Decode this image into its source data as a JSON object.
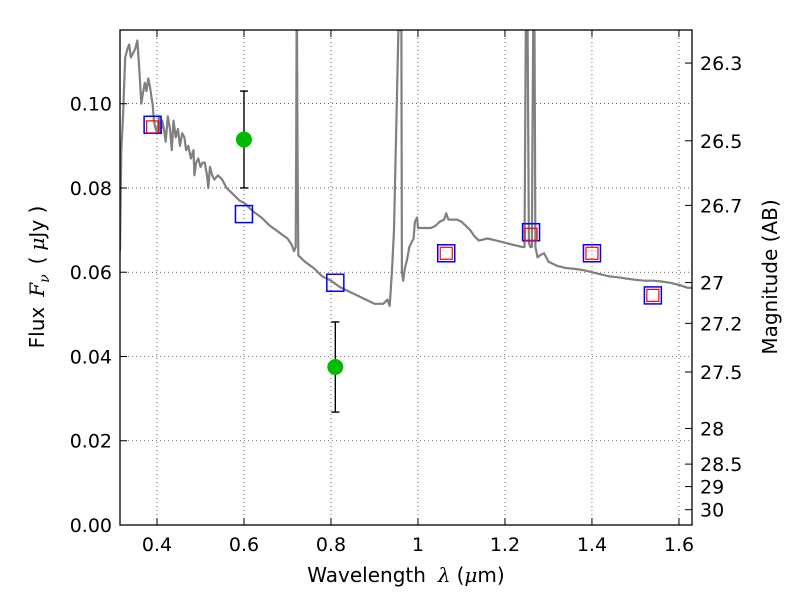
{
  "chart_data": {
    "type": "scatter",
    "xlabel": "Wavelength",
    "xlabel_symbol": "λ",
    "xlabel_unit_prefix": "(",
    "xlabel_unit_mu": "μ",
    "xlabel_unit_suffix": "m)",
    "ylabel": "Flux",
    "ylabel_symbol": "F",
    "ylabel_symbol_sub": "ν",
    "ylabel_unit_open": "(",
    "ylabel_unit_mu": "μ",
    "ylabel_unit_suffix": "Jy )",
    "y2label": "Magnitude (AB)",
    "xlim": [
      0.315,
      1.63
    ],
    "ylim": [
      0.0,
      0.1175
    ],
    "grid": true,
    "x_ticks": [
      0.4,
      0.6,
      0.8,
      1.0,
      1.2,
      1.4,
      1.6
    ],
    "x_tick_labels": [
      "0.4",
      "0.6",
      "0.8",
      "1",
      "1.2",
      "1.4",
      "1.6"
    ],
    "y_ticks": [
      0.0,
      0.02,
      0.04,
      0.06,
      0.08,
      0.1
    ],
    "y_tick_labels": [
      "0.00",
      "0.02",
      "0.04",
      "0.06",
      "0.08",
      "0.10"
    ],
    "mag_ticks": [
      26.3,
      26.5,
      26.7,
      27,
      27.2,
      27.5,
      28,
      28.5,
      29,
      30
    ],
    "mag_tick_labels": [
      "26.3",
      "26.5",
      "26.7",
      "27",
      "27.2",
      "27.5",
      "28",
      "28.5",
      "29",
      "30"
    ],
    "colors": {
      "sed": "#808080",
      "model_flux": "#0000ff",
      "observed_flux": "#ff0000",
      "detections": "#00bb00",
      "errorbar": "#000000"
    },
    "series": [
      {
        "name": "SED template",
        "type": "line",
        "points": [
          [
            0.315,
            0.065
          ],
          [
            0.318,
            0.089
          ],
          [
            0.322,
            0.097
          ],
          [
            0.327,
            0.111
          ],
          [
            0.332,
            0.113
          ],
          [
            0.336,
            0.114
          ],
          [
            0.34,
            0.111
          ],
          [
            0.345,
            0.112
          ],
          [
            0.35,
            0.113
          ],
          [
            0.355,
            0.115
          ],
          [
            0.36,
            0.107
          ],
          [
            0.364,
            0.1
          ],
          [
            0.367,
            0.102
          ],
          [
            0.372,
            0.105
          ],
          [
            0.376,
            0.103
          ],
          [
            0.38,
            0.106
          ],
          [
            0.384,
            0.104
          ],
          [
            0.388,
            0.101
          ],
          [
            0.39,
            0.1
          ],
          [
            0.393,
            0.096
          ],
          [
            0.397,
            0.094
          ],
          [
            0.401,
            0.093
          ],
          [
            0.405,
            0.097
          ],
          [
            0.408,
            0.093
          ],
          [
            0.412,
            0.096
          ],
          [
            0.416,
            0.094
          ],
          [
            0.42,
            0.091
          ],
          [
            0.425,
            0.097
          ],
          [
            0.43,
            0.094
          ],
          [
            0.434,
            0.089
          ],
          [
            0.438,
            0.096
          ],
          [
            0.443,
            0.092
          ],
          [
            0.448,
            0.094
          ],
          [
            0.453,
            0.09
          ],
          [
            0.458,
            0.093
          ],
          [
            0.463,
            0.092
          ],
          [
            0.467,
            0.089
          ],
          [
            0.472,
            0.09
          ],
          [
            0.478,
            0.087
          ],
          [
            0.484,
            0.089
          ],
          [
            0.486,
            0.083
          ],
          [
            0.49,
            0.086
          ],
          [
            0.495,
            0.087
          ],
          [
            0.5,
            0.085
          ],
          [
            0.505,
            0.086
          ],
          [
            0.51,
            0.086
          ],
          [
            0.515,
            0.083
          ],
          [
            0.518,
            0.08
          ],
          [
            0.522,
            0.085
          ],
          [
            0.527,
            0.083
          ],
          [
            0.532,
            0.082
          ],
          [
            0.54,
            0.083
          ],
          [
            0.55,
            0.082
          ],
          [
            0.56,
            0.08
          ],
          [
            0.57,
            0.079
          ],
          [
            0.58,
            0.078
          ],
          [
            0.59,
            0.077
          ],
          [
            0.6,
            0.0765
          ],
          [
            0.62,
            0.0745
          ],
          [
            0.64,
            0.073
          ],
          [
            0.66,
            0.071
          ],
          [
            0.68,
            0.0695
          ],
          [
            0.7,
            0.068
          ],
          [
            0.71,
            0.0665
          ],
          [
            0.715,
            0.065
          ],
          [
            0.719,
            0.066
          ],
          [
            0.72,
            0.09
          ],
          [
            0.721,
            0.1175
          ],
          [
            0.722,
            0.1175
          ],
          [
            0.723,
            0.09
          ],
          [
            0.725,
            0.064
          ],
          [
            0.74,
            0.0625
          ],
          [
            0.76,
            0.061
          ],
          [
            0.78,
            0.059
          ],
          [
            0.8,
            0.058
          ],
          [
            0.82,
            0.0565
          ],
          [
            0.84,
            0.0555
          ],
          [
            0.86,
            0.0545
          ],
          [
            0.88,
            0.0535
          ],
          [
            0.9,
            0.0525
          ],
          [
            0.92,
            0.0525
          ],
          [
            0.93,
            0.0535
          ],
          [
            0.935,
            0.052
          ],
          [
            0.94,
            0.06
          ],
          [
            0.945,
            0.07
          ],
          [
            0.955,
            0.1175
          ],
          [
            0.96,
            0.1175
          ],
          [
            0.962,
            0.1175
          ],
          [
            0.963,
            0.06
          ],
          [
            0.966,
            0.058
          ],
          [
            0.97,
            0.061
          ],
          [
            0.975,
            0.063
          ],
          [
            0.98,
            0.066
          ],
          [
            0.985,
            0.067
          ],
          [
            0.99,
            0.068
          ],
          [
            0.993,
            0.072
          ],
          [
            0.998,
            0.073
          ],
          [
            1.0,
            0.0705
          ],
          [
            1.01,
            0.0705
          ],
          [
            1.02,
            0.0705
          ],
          [
            1.03,
            0.0705
          ],
          [
            1.04,
            0.071
          ],
          [
            1.05,
            0.072
          ],
          [
            1.06,
            0.0725
          ],
          [
            1.065,
            0.074
          ],
          [
            1.07,
            0.0725
          ],
          [
            1.09,
            0.0725
          ],
          [
            1.1,
            0.072
          ],
          [
            1.12,
            0.07
          ],
          [
            1.13,
            0.0685
          ],
          [
            1.14,
            0.0675
          ],
          [
            1.16,
            0.068
          ],
          [
            1.18,
            0.0675
          ],
          [
            1.2,
            0.067
          ],
          [
            1.22,
            0.0665
          ],
          [
            1.24,
            0.066
          ],
          [
            1.245,
            0.066
          ],
          [
            1.248,
            0.1175
          ],
          [
            1.252,
            0.1175
          ],
          [
            1.255,
            0.067
          ],
          [
            1.258,
            0.066
          ],
          [
            1.262,
            0.066
          ],
          [
            1.263,
            0.09
          ],
          [
            1.265,
            0.1175
          ],
          [
            1.268,
            0.1175
          ],
          [
            1.27,
            0.066
          ],
          [
            1.275,
            0.0635
          ],
          [
            1.28,
            0.064
          ],
          [
            1.29,
            0.0645
          ],
          [
            1.3,
            0.0625
          ],
          [
            1.32,
            0.0615
          ],
          [
            1.34,
            0.061
          ],
          [
            1.36,
            0.0608
          ],
          [
            1.38,
            0.0605
          ],
          [
            1.4,
            0.06
          ],
          [
            1.42,
            0.0595
          ],
          [
            1.44,
            0.059
          ],
          [
            1.46,
            0.0588
          ],
          [
            1.48,
            0.0585
          ],
          [
            1.5,
            0.0582
          ],
          [
            1.52,
            0.058
          ],
          [
            1.54,
            0.058
          ],
          [
            1.56,
            0.0578
          ],
          [
            1.58,
            0.0575
          ],
          [
            1.6,
            0.057
          ],
          [
            1.62,
            0.0563
          ],
          [
            1.63,
            0.0563
          ]
        ]
      },
      {
        "name": "Model flux (blue squares)",
        "type": "scatter",
        "marker": "square-large",
        "x": [
          0.39,
          0.6,
          0.81,
          1.065,
          1.26,
          1.4,
          1.54
        ],
        "y": [
          0.095,
          0.0738,
          0.0575,
          0.0645,
          0.0695,
          0.0645,
          0.0545
        ]
      },
      {
        "name": "Observed flux (red squares)",
        "type": "scatter",
        "marker": "square-small",
        "x": [
          0.39,
          1.065,
          1.26,
          1.4,
          1.54
        ],
        "y": [
          0.0945,
          0.0645,
          0.069,
          0.0645,
          0.0545
        ]
      },
      {
        "name": "Detections with error bars",
        "type": "scatter",
        "marker": "circle",
        "x": [
          0.6,
          0.81
        ],
        "y": [
          0.0915,
          0.0375
        ],
        "yerr": [
          0.0115,
          0.0107
        ]
      }
    ]
  }
}
